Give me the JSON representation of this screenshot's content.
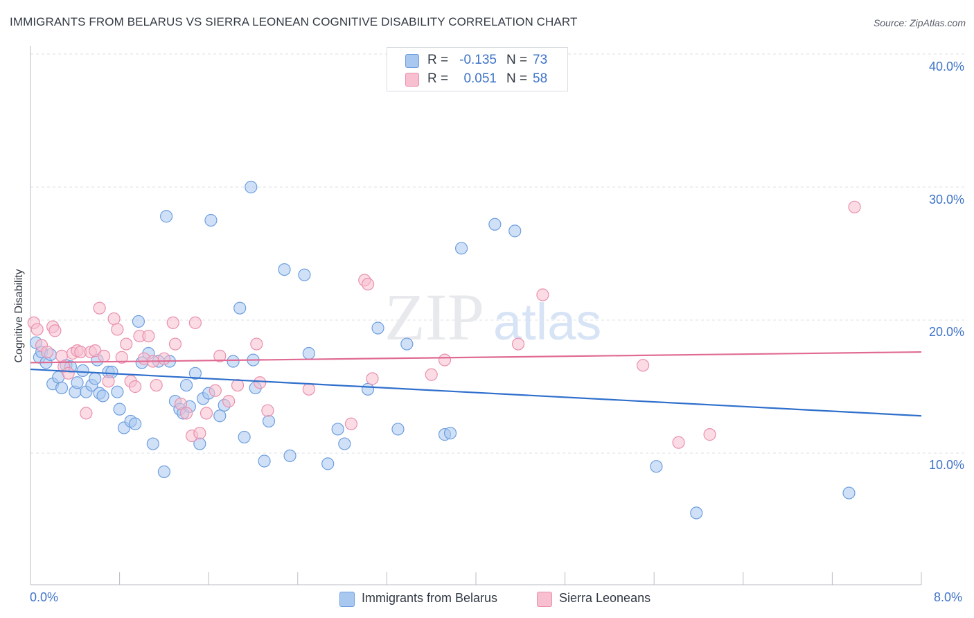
{
  "title": "IMMIGRANTS FROM BELARUS VS SIERRA LEONEAN COGNITIVE DISABILITY CORRELATION CHART",
  "source": "Source: ZipAtlas.com",
  "watermark": {
    "zip": "ZIP",
    "atlas": "atlas"
  },
  "legend": {
    "rows": [
      {
        "r_label": "R =",
        "r_value": "-0.135",
        "n_label": "N =",
        "n_value": "73",
        "color": "#a9c8f0",
        "stroke": "#6d9ee0"
      },
      {
        "r_label": "R =",
        "r_value": "0.051",
        "n_label": "N =",
        "n_value": "58",
        "color": "#f7bfd0",
        "stroke": "#ea8fac"
      }
    ]
  },
  "bottom_legend": [
    {
      "label": "Immigrants from Belarus",
      "color": "#a9c8f0",
      "stroke": "#6d9ee0"
    },
    {
      "label": "Sierra Leoneans",
      "color": "#f7bfd0",
      "stroke": "#ea8fac"
    }
  ],
  "axis_labels": {
    "x_left": "0.0%",
    "x_right": "8.0%",
    "y_ticks": [
      "40.0%",
      "30.0%",
      "20.0%",
      "10.0%"
    ]
  },
  "chart_data": {
    "type": "scatter",
    "title": "IMMIGRANTS FROM BELARUS VS SIERRA LEONEAN COGNITIVE DISABILITY CORRELATION CHART",
    "xlabel": "",
    "ylabel": "Cognitive Disability",
    "xlim": [
      0,
      8
    ],
    "ylim": [
      0,
      41
    ],
    "x_ticks": [
      0,
      0.8,
      1.6,
      2.4,
      3.2,
      4.0,
      4.8,
      5.6,
      6.4,
      7.2,
      8.0
    ],
    "y_ticks": [
      10,
      20,
      30,
      40
    ],
    "grid": true,
    "legend_position": "top-center",
    "series": [
      {
        "name": "Immigrants from Belarus",
        "color": "#a9c8f0",
        "stroke": "#6d9ee0",
        "trend": {
          "x": [
            0,
            8
          ],
          "y": [
            16.3,
            12.8
          ],
          "color": "#2f6fcc"
        },
        "points": [
          [
            0.05,
            18.3
          ],
          [
            0.08,
            17.2
          ],
          [
            0.1,
            17.6
          ],
          [
            0.14,
            16.8
          ],
          [
            0.18,
            17.4
          ],
          [
            0.2,
            15.2
          ],
          [
            0.25,
            15.7
          ],
          [
            0.28,
            14.9
          ],
          [
            0.32,
            16.6
          ],
          [
            0.36,
            16.5
          ],
          [
            0.4,
            14.6
          ],
          [
            0.42,
            15.3
          ],
          [
            0.47,
            16.2
          ],
          [
            0.5,
            14.6
          ],
          [
            0.55,
            15.1
          ],
          [
            0.58,
            15.6
          ],
          [
            0.62,
            14.5
          ],
          [
            0.65,
            14.3
          ],
          [
            0.7,
            16.1
          ],
          [
            0.73,
            16.1
          ],
          [
            0.78,
            14.6
          ],
          [
            0.8,
            13.3
          ],
          [
            0.84,
            11.9
          ],
          [
            0.9,
            12.4
          ],
          [
            0.94,
            12.2
          ],
          [
            0.97,
            19.9
          ],
          [
            1.0,
            16.8
          ],
          [
            1.06,
            17.5
          ],
          [
            1.1,
            10.7
          ],
          [
            1.2,
            8.6
          ],
          [
            1.22,
            27.8
          ],
          [
            1.25,
            16.9
          ],
          [
            1.3,
            13.9
          ],
          [
            1.34,
            13.3
          ],
          [
            1.37,
            13.0
          ],
          [
            1.4,
            15.1
          ],
          [
            1.43,
            13.5
          ],
          [
            1.48,
            16.0
          ],
          [
            1.52,
            10.7
          ],
          [
            1.55,
            14.1
          ],
          [
            1.6,
            14.5
          ],
          [
            1.62,
            27.5
          ],
          [
            1.7,
            12.8
          ],
          [
            1.74,
            13.6
          ],
          [
            1.82,
            16.9
          ],
          [
            1.88,
            20.9
          ],
          [
            1.92,
            11.2
          ],
          [
            1.98,
            30.0
          ],
          [
            2.02,
            14.9
          ],
          [
            2.1,
            9.4
          ],
          [
            2.14,
            12.4
          ],
          [
            2.28,
            23.8
          ],
          [
            2.33,
            9.8
          ],
          [
            2.46,
            23.4
          ],
          [
            2.5,
            17.5
          ],
          [
            2.67,
            9.2
          ],
          [
            2.76,
            11.8
          ],
          [
            2.82,
            10.7
          ],
          [
            3.03,
            14.8
          ],
          [
            3.12,
            19.4
          ],
          [
            3.3,
            11.8
          ],
          [
            3.38,
            18.2
          ],
          [
            3.72,
            11.4
          ],
          [
            3.77,
            11.5
          ],
          [
            3.87,
            25.4
          ],
          [
            4.17,
            27.2
          ],
          [
            4.35,
            26.7
          ],
          [
            5.62,
            9.0
          ],
          [
            5.98,
            5.5
          ],
          [
            7.35,
            7.0
          ],
          [
            1.15,
            16.9
          ],
          [
            0.6,
            17.0
          ],
          [
            2.0,
            17.0
          ]
        ]
      },
      {
        "name": "Sierra Leoneans",
        "color": "#f7bfd0",
        "stroke": "#ea8fac",
        "trend": {
          "x": [
            0,
            8
          ],
          "y": [
            16.8,
            17.6
          ],
          "color": "#e06a93"
        },
        "points": [
          [
            0.03,
            19.8
          ],
          [
            0.06,
            19.3
          ],
          [
            0.1,
            18.1
          ],
          [
            0.15,
            17.6
          ],
          [
            0.2,
            19.5
          ],
          [
            0.22,
            19.2
          ],
          [
            0.28,
            17.3
          ],
          [
            0.3,
            16.5
          ],
          [
            0.34,
            16.0
          ],
          [
            0.38,
            17.5
          ],
          [
            0.42,
            17.7
          ],
          [
            0.45,
            17.6
          ],
          [
            0.5,
            13.0
          ],
          [
            0.54,
            17.6
          ],
          [
            0.58,
            17.7
          ],
          [
            0.62,
            20.9
          ],
          [
            0.66,
            17.3
          ],
          [
            0.7,
            15.4
          ],
          [
            0.75,
            20.1
          ],
          [
            0.78,
            19.3
          ],
          [
            0.82,
            17.2
          ],
          [
            0.86,
            18.2
          ],
          [
            0.9,
            15.4
          ],
          [
            0.94,
            15.0
          ],
          [
            0.98,
            18.8
          ],
          [
            1.02,
            17.1
          ],
          [
            1.06,
            18.8
          ],
          [
            1.1,
            16.9
          ],
          [
            1.13,
            15.1
          ],
          [
            1.2,
            17.1
          ],
          [
            1.28,
            19.8
          ],
          [
            1.3,
            18.2
          ],
          [
            1.35,
            13.7
          ],
          [
            1.4,
            13.0
          ],
          [
            1.45,
            11.3
          ],
          [
            1.48,
            19.8
          ],
          [
            1.52,
            11.5
          ],
          [
            1.58,
            13.0
          ],
          [
            1.66,
            14.7
          ],
          [
            1.7,
            17.3
          ],
          [
            1.78,
            13.9
          ],
          [
            1.86,
            15.1
          ],
          [
            2.03,
            18.2
          ],
          [
            2.06,
            15.3
          ],
          [
            2.13,
            13.2
          ],
          [
            2.5,
            14.8
          ],
          [
            2.88,
            12.2
          ],
          [
            3.0,
            23.0
          ],
          [
            3.03,
            22.7
          ],
          [
            3.07,
            15.6
          ],
          [
            3.6,
            15.9
          ],
          [
            3.72,
            17.0
          ],
          [
            4.38,
            18.2
          ],
          [
            4.6,
            21.9
          ],
          [
            5.5,
            16.6
          ],
          [
            5.82,
            10.8
          ],
          [
            6.1,
            11.4
          ],
          [
            7.4,
            28.5
          ]
        ]
      }
    ]
  }
}
